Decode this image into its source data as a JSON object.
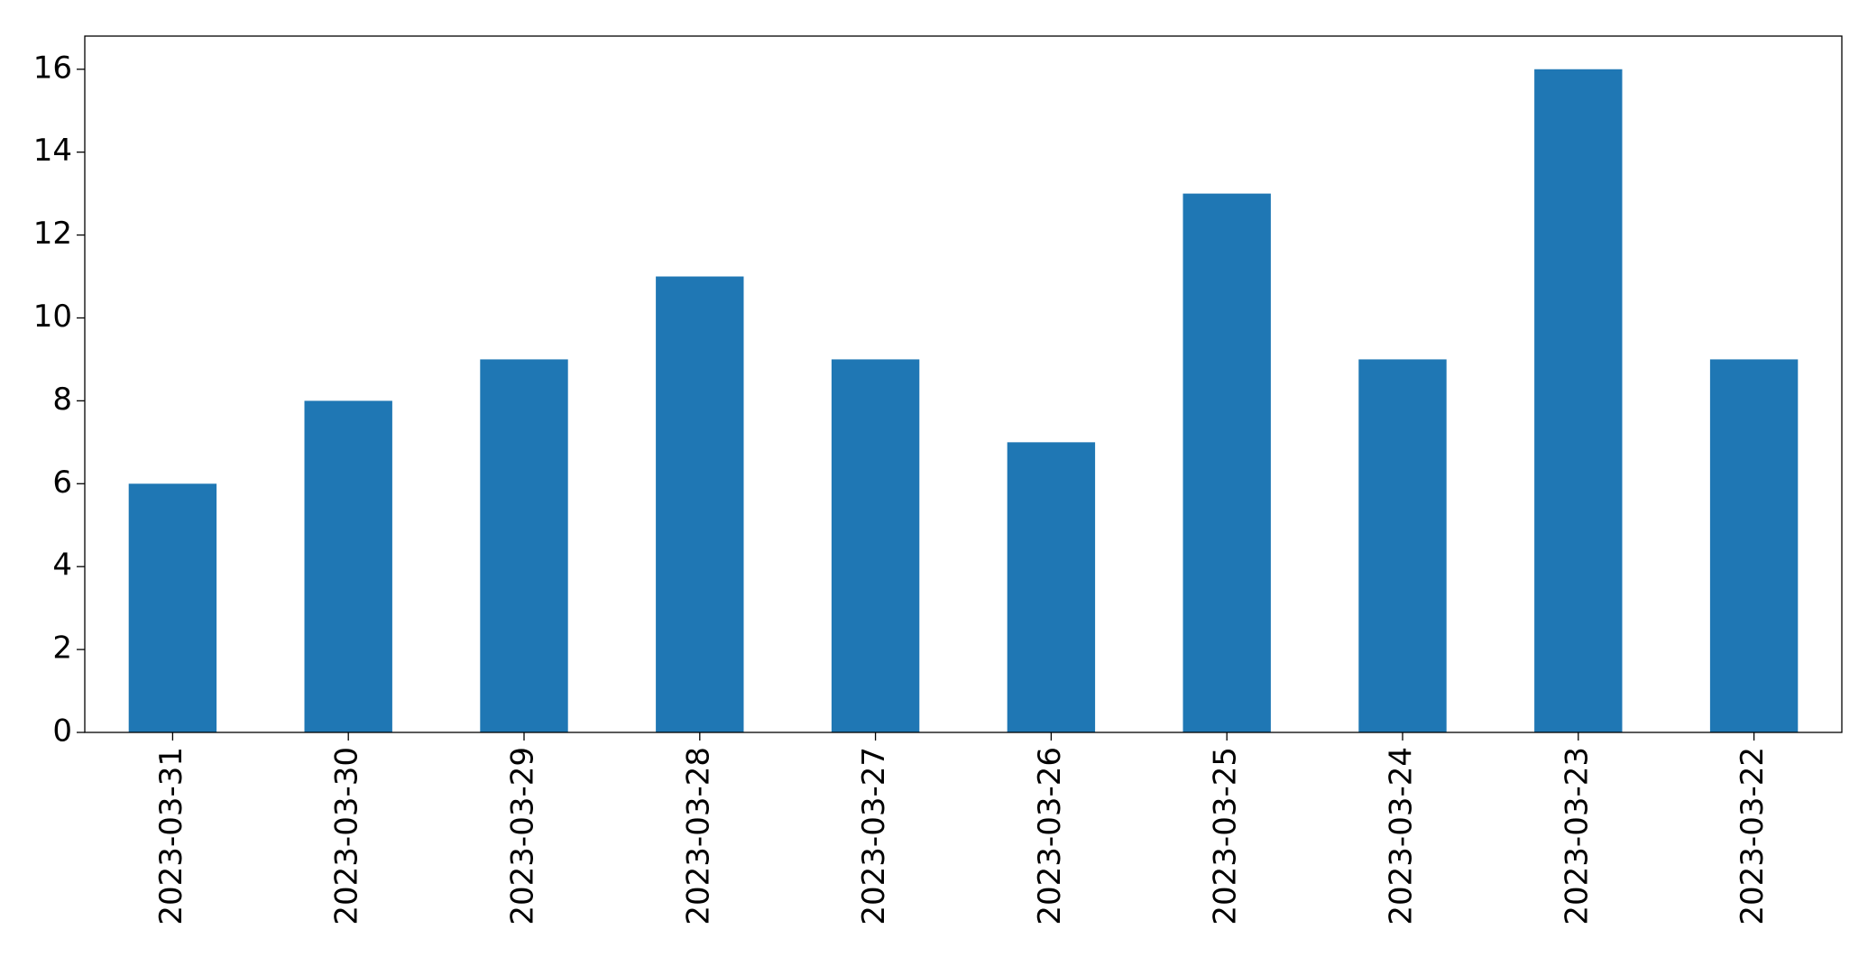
{
  "chart_data": {
    "type": "bar",
    "categories": [
      "2023-03-31",
      "2023-03-30",
      "2023-03-29",
      "2023-03-28",
      "2023-03-27",
      "2023-03-26",
      "2023-03-25",
      "2023-03-24",
      "2023-03-23",
      "2023-03-22"
    ],
    "values": [
      6,
      8,
      9,
      11,
      9,
      7,
      13,
      9,
      16,
      9
    ],
    "color": "#1f77b4",
    "ylim": [
      0,
      16.8
    ],
    "yticks": [
      0,
      2,
      4,
      6,
      8,
      10,
      12,
      14,
      16
    ],
    "grid": false
  }
}
